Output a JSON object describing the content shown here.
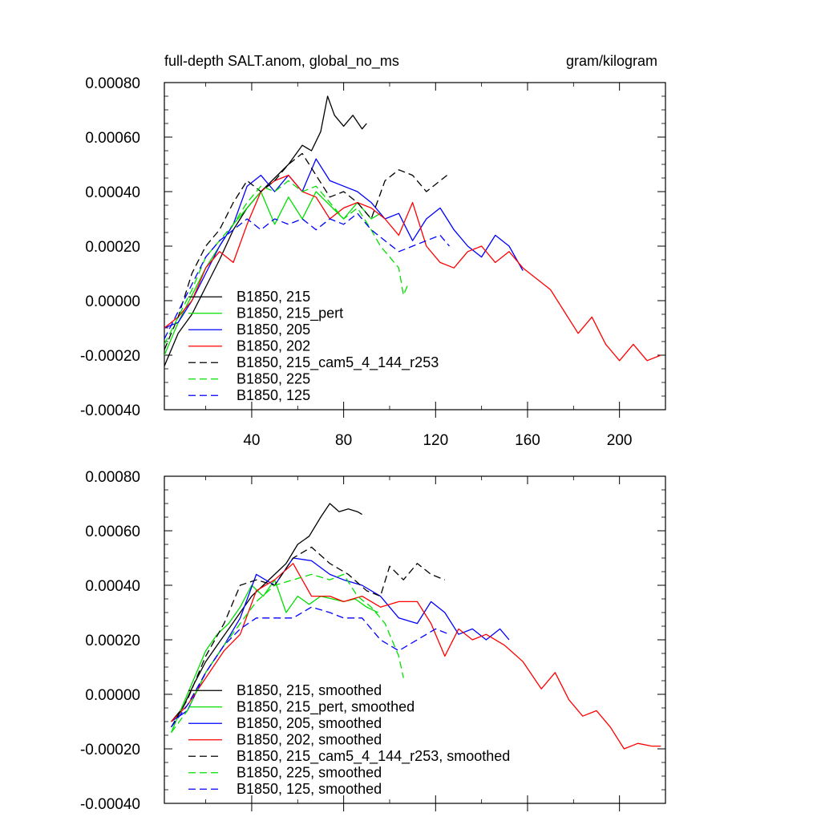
{
  "figure": {
    "title_left": "full-depth SALT.anom, global_no_ms",
    "title_right": "gram/kilogram"
  },
  "colors": {
    "black": "#000000",
    "green": "#00e000",
    "blue": "#0000ff",
    "red": "#ff0000"
  },
  "chart_data": [
    {
      "type": "line",
      "panel": "top",
      "xlim": [
        2,
        220
      ],
      "ylim": [
        -0.0004,
        0.0008
      ],
      "xticks": [
        40,
        80,
        120,
        160,
        200
      ],
      "yticks": [
        -0.0004,
        -0.0002,
        0.0,
        0.0002,
        0.0004,
        0.0006,
        0.0008
      ],
      "ytick_labels": [
        "-0.00040",
        "-0.00020",
        "0.00000",
        "0.00020",
        "0.00040",
        "0.00060",
        "0.00080"
      ],
      "xtick_labels": [
        "40",
        "80",
        "120",
        "160",
        "200"
      ],
      "legend_position": "bottom-left",
      "series": [
        {
          "name": "B1850, 215",
          "color": "black",
          "dash": "solid",
          "x": [
            2,
            8,
            14,
            20,
            26,
            32,
            38,
            44,
            50,
            56,
            62,
            66,
            70,
            73,
            76,
            80,
            84,
            88,
            90
          ],
          "y": [
            -0.00024,
            -0.00012,
            -5e-05,
            5e-05,
            0.00015,
            0.00026,
            0.00034,
            0.0004,
            0.00045,
            0.0005,
            0.00057,
            0.00055,
            0.00062,
            0.00075,
            0.00068,
            0.00064,
            0.00068,
            0.00063,
            0.00065
          ]
        },
        {
          "name": "B1850, 215_pert",
          "color": "green",
          "dash": "solid",
          "x": [
            2,
            8,
            14,
            20,
            26,
            32,
            38,
            44,
            50,
            56,
            62,
            68,
            74,
            80,
            86,
            92,
            96
          ],
          "y": [
            -0.0002,
            -8e-05,
            2e-05,
            0.00012,
            0.0002,
            0.00028,
            0.00034,
            0.0004,
            0.00028,
            0.00038,
            0.0003,
            0.0004,
            0.00035,
            0.0003,
            0.00036,
            0.0003,
            0.00032
          ]
        },
        {
          "name": "B1850, 205",
          "color": "blue",
          "dash": "solid",
          "x": [
            2,
            8,
            14,
            20,
            26,
            32,
            38,
            44,
            50,
            56,
            62,
            68,
            74,
            80,
            86,
            92,
            98,
            104,
            110,
            116,
            122,
            128,
            134,
            140,
            146,
            152,
            158
          ],
          "y": [
            -0.0001,
            -8e-05,
            0.0,
            0.0001,
            0.0002,
            0.00028,
            0.00042,
            0.00046,
            0.0004,
            0.00046,
            0.0004,
            0.00052,
            0.00044,
            0.00042,
            0.0004,
            0.00036,
            0.0003,
            0.00032,
            0.00022,
            0.0003,
            0.00034,
            0.00026,
            0.0002,
            0.00016,
            0.00024,
            0.0002,
            0.00011
          ]
        },
        {
          "name": "B1850, 202",
          "color": "red",
          "dash": "solid",
          "x": [
            2,
            8,
            14,
            20,
            26,
            32,
            38,
            44,
            50,
            56,
            62,
            68,
            74,
            80,
            86,
            92,
            98,
            104,
            110,
            116,
            122,
            128,
            134,
            140,
            146,
            152,
            158,
            164,
            170,
            176,
            182,
            188,
            194,
            200,
            206,
            212,
            218
          ],
          "y": [
            -0.0001,
            -6e-05,
            0.0,
            0.00012,
            0.00018,
            0.00014,
            0.00028,
            0.0004,
            0.00044,
            0.00046,
            0.0004,
            0.00038,
            0.0003,
            0.00034,
            0.00036,
            0.00034,
            0.0003,
            0.00024,
            0.00036,
            0.0002,
            0.00014,
            0.00012,
            0.00018,
            0.0002,
            0.00014,
            0.00018,
            0.00012,
            8e-05,
            4e-05,
            -4e-05,
            -0.00012,
            -6e-05,
            -0.00016,
            -0.00022,
            -0.00016,
            -0.00022,
            -0.0002
          ]
        },
        {
          "name": "B1850, 215_cam5_4_144_r253",
          "color": "black",
          "dash": "dashed",
          "x": [
            2,
            8,
            14,
            20,
            26,
            32,
            38,
            44,
            50,
            56,
            62,
            68,
            74,
            80,
            86,
            92,
            98,
            104,
            110,
            116,
            122,
            125
          ],
          "y": [
            -0.00018,
            -6e-05,
            0.0001,
            0.0002,
            0.00026,
            0.00036,
            0.00044,
            0.0004,
            0.00044,
            0.0005,
            0.00054,
            0.00046,
            0.00038,
            0.0004,
            0.00036,
            0.0003,
            0.00044,
            0.00048,
            0.00046,
            0.0004,
            0.00044,
            0.00046
          ]
        },
        {
          "name": "B1850, 225",
          "color": "green",
          "dash": "dashed",
          "x": [
            2,
            8,
            14,
            20,
            26,
            32,
            38,
            44,
            50,
            56,
            62,
            68,
            74,
            80,
            86,
            92,
            96,
            100,
            104,
            106,
            108
          ],
          "y": [
            -0.00016,
            -6e-05,
            4e-05,
            0.00016,
            0.00022,
            0.00028,
            0.00036,
            0.00042,
            0.0004,
            0.00044,
            0.0004,
            0.00042,
            0.00036,
            0.0003,
            0.00034,
            0.00026,
            0.0002,
            0.00016,
            0.00012,
            2e-05,
            6e-05
          ]
        },
        {
          "name": "B1850, 125",
          "color": "blue",
          "dash": "dashed",
          "x": [
            2,
            8,
            14,
            20,
            26,
            32,
            38,
            44,
            50,
            56,
            62,
            68,
            74,
            80,
            86,
            92,
            98,
            104,
            110,
            116,
            122,
            126
          ],
          "y": [
            -0.00014,
            -4e-05,
            6e-05,
            0.00016,
            0.00022,
            0.00026,
            0.0003,
            0.00026,
            0.0003,
            0.00028,
            0.0003,
            0.00026,
            0.0003,
            0.00028,
            0.00032,
            0.00026,
            0.00022,
            0.00018,
            0.0002,
            0.00022,
            0.00024,
            0.0002
          ]
        }
      ]
    },
    {
      "type": "line",
      "panel": "bottom",
      "xlim": [
        2,
        220
      ],
      "ylim": [
        -0.0004,
        0.0008
      ],
      "xticks": [
        40,
        80,
        120,
        160,
        200
      ],
      "yticks": [
        -0.0004,
        -0.0002,
        0.0,
        0.0002,
        0.0004,
        0.0006,
        0.0008
      ],
      "ytick_labels": [
        "-0.00040",
        "-0.00020",
        "0.00000",
        "0.00020",
        "0.00040",
        "0.00060",
        "0.00080"
      ],
      "legend_position": "bottom-left",
      "series": [
        {
          "name": "B1850, 215, smoothed",
          "color": "black",
          "dash": "solid",
          "x": [
            5,
            10,
            15,
            20,
            25,
            30,
            35,
            40,
            45,
            50,
            55,
            60,
            65,
            70,
            74,
            78,
            82,
            86,
            88
          ],
          "y": [
            -0.0001,
            -5e-05,
            4e-05,
            0.00012,
            0.00018,
            0.00024,
            0.0003,
            0.00036,
            0.0004,
            0.00044,
            0.00048,
            0.00055,
            0.00058,
            0.00065,
            0.0007,
            0.00067,
            0.00068,
            0.00067,
            0.00066
          ]
        },
        {
          "name": "B1850, 215_pert, smoothed",
          "color": "green",
          "dash": "solid",
          "x": [
            5,
            10,
            15,
            20,
            25,
            30,
            35,
            40,
            45,
            50,
            55,
            60,
            65,
            70,
            75,
            80,
            85,
            90,
            95
          ],
          "y": [
            -0.00014,
            -4e-05,
            6e-05,
            0.00016,
            0.00022,
            0.00026,
            0.00032,
            0.0004,
            0.00036,
            0.00042,
            0.0003,
            0.00036,
            0.00033,
            0.00036,
            0.00035,
            0.00034,
            0.00035,
            0.00032,
            0.0003
          ]
        },
        {
          "name": "B1850, 205, smoothed",
          "color": "blue",
          "dash": "solid",
          "x": [
            5,
            12,
            20,
            28,
            35,
            42,
            50,
            58,
            66,
            74,
            80,
            88,
            96,
            104,
            112,
            118,
            124,
            130,
            136,
            142,
            148,
            152
          ],
          "y": [
            -0.0001,
            -6e-05,
            8e-05,
            0.00018,
            0.00028,
            0.00044,
            0.0004,
            0.0005,
            0.00049,
            0.00044,
            0.00042,
            0.0004,
            0.00036,
            0.00028,
            0.00026,
            0.00034,
            0.0003,
            0.00022,
            0.00024,
            0.0002,
            0.00024,
            0.0002
          ]
        },
        {
          "name": "B1850, 202, smoothed",
          "color": "red",
          "dash": "solid",
          "x": [
            5,
            12,
            20,
            28,
            35,
            42,
            50,
            58,
            66,
            74,
            80,
            88,
            96,
            104,
            112,
            118,
            124,
            130,
            136,
            142,
            150,
            158,
            166,
            172,
            178,
            184,
            190,
            196,
            202,
            208,
            214,
            218
          ],
          "y": [
            -0.0001,
            -4e-05,
            6e-05,
            0.00016,
            0.00022,
            0.00038,
            0.00042,
            0.00048,
            0.00036,
            0.00036,
            0.00034,
            0.00036,
            0.00032,
            0.00034,
            0.00034,
            0.00026,
            0.00014,
            0.00024,
            0.0002,
            0.00022,
            0.00018,
            0.00012,
            2e-05,
            8e-05,
            -2e-05,
            -8e-05,
            -6e-05,
            -0.00012,
            -0.0002,
            -0.00018,
            -0.00019,
            -0.00019
          ]
        },
        {
          "name": "B1850, 215_cam5_4_144_r253, smoothed",
          "color": "black",
          "dash": "dashed",
          "x": [
            5,
            12,
            20,
            28,
            35,
            42,
            50,
            58,
            66,
            74,
            82,
            90,
            96,
            100,
            106,
            112,
            118,
            124
          ],
          "y": [
            -0.00012,
            -2e-05,
            0.00014,
            0.00026,
            0.0004,
            0.00042,
            0.0004,
            0.0005,
            0.00054,
            0.00048,
            0.00044,
            0.00038,
            0.00036,
            0.00047,
            0.00042,
            0.00048,
            0.00044,
            0.00042
          ]
        },
        {
          "name": "B1850, 225, smoothed",
          "color": "green",
          "dash": "dashed",
          "x": [
            5,
            12,
            20,
            28,
            35,
            42,
            50,
            58,
            66,
            74,
            80,
            86,
            92,
            98,
            104,
            106
          ],
          "y": [
            -0.00014,
            -6e-05,
            8e-05,
            0.00018,
            0.00026,
            0.00034,
            0.0004,
            0.00042,
            0.00044,
            0.00042,
            0.00044,
            0.00036,
            0.00032,
            0.00026,
            0.00014,
            6e-05
          ]
        },
        {
          "name": "B1850, 125, smoothed",
          "color": "blue",
          "dash": "dashed",
          "x": [
            5,
            12,
            20,
            28,
            35,
            42,
            50,
            58,
            66,
            74,
            80,
            88,
            96,
            104,
            112,
            120,
            126
          ],
          "y": [
            -0.00012,
            -4e-05,
            8e-05,
            0.00018,
            0.00024,
            0.00028,
            0.00028,
            0.00028,
            0.00032,
            0.0003,
            0.00028,
            0.00028,
            0.0002,
            0.00016,
            0.0002,
            0.00024,
            0.00022
          ]
        }
      ]
    }
  ]
}
